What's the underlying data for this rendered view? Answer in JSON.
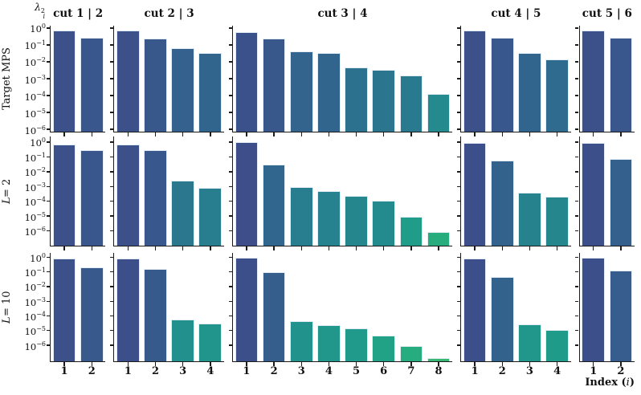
{
  "figure": {
    "background": "#ffffff",
    "spine_color": "#1b1b1b",
    "bar_edge_color": "#e2ecf5"
  },
  "y_axis_title": {
    "symbol": "λ",
    "sup": "2",
    "sub": "i"
  },
  "x_axis_label": {
    "prefix": "Index (",
    "variable": "i",
    "suffix": ")"
  },
  "y_axis": {
    "base": "10",
    "exponents": [
      "0",
      "−1",
      "−2",
      "−3",
      "−4",
      "−5",
      "−6"
    ],
    "tick_values": [
      0,
      -1,
      -2,
      -3,
      -4,
      -5,
      -6
    ]
  },
  "colormap": {
    "name": "viridis-subset",
    "log_domain": [
      0,
      -7
    ],
    "stops": [
      "#3d4e8a",
      "#355e8d",
      "#2e6d8e",
      "#287d8e",
      "#238c8d",
      "#1f9c89",
      "#25ab7f",
      "#3bb873"
    ]
  },
  "chart_data": {
    "type": "bar",
    "yscale": "log",
    "grid": false,
    "columns": [
      {
        "key": "cut-1-2",
        "title": "cut 1 | 2",
        "n_bars": 2,
        "indices": [
          "1",
          "2"
        ]
      },
      {
        "key": "cut-2-3",
        "title": "cut 2 | 3",
        "n_bars": 4,
        "indices": [
          "1",
          "2",
          "3",
          "4"
        ]
      },
      {
        "key": "cut-3-4",
        "title": "cut 3 | 4",
        "n_bars": 8,
        "indices": [
          "1",
          "2",
          "3",
          "4",
          "5",
          "6",
          "7",
          "8"
        ]
      },
      {
        "key": "cut-4-5",
        "title": "cut 4 | 5",
        "n_bars": 4,
        "indices": [
          "1",
          "2",
          "3",
          "4"
        ]
      },
      {
        "key": "cut-5-6",
        "title": "cut 5 | 6",
        "n_bars": 2,
        "indices": [
          "1",
          "2"
        ]
      }
    ],
    "rows": [
      {
        "label": "Target MPS",
        "ylim_log": [
          0.15,
          -6.15
        ],
        "panels": [
          [
            0.72,
            0.28
          ],
          [
            0.72,
            0.25,
            0.065,
            0.035
          ],
          [
            0.62,
            0.25,
            0.042,
            0.032,
            0.0048,
            0.0033,
            0.0016,
            0.00013
          ],
          [
            0.75,
            0.26,
            0.034,
            0.014
          ],
          [
            0.74,
            0.28
          ]
        ]
      },
      {
        "label_var": "L",
        "label_rest": " = 2",
        "ylim_log": [
          0.38,
          -7.0
        ],
        "panels": [
          [
            0.72,
            0.28
          ],
          [
            0.72,
            0.27,
            0.0025,
            0.0008
          ],
          [
            0.95,
            0.029,
            0.0009,
            0.0005,
            0.00023,
            0.00011,
            8.5e-06,
            8e-07
          ],
          [
            0.93,
            0.055,
            0.0004,
            0.0002
          ],
          [
            0.93,
            0.07
          ]
        ]
      },
      {
        "label_var": "L",
        "label_rest": " = 10",
        "ylim_log": [
          0.3,
          -7.1
        ],
        "panels": [
          [
            0.8,
            0.2
          ],
          [
            0.82,
            0.17,
            6e-05,
            3e-05
          ],
          [
            0.9,
            0.1,
            4.5e-05,
            2.2e-05,
            1.4e-05,
            4.5e-06,
            9e-07,
            1.3e-07
          ],
          [
            0.85,
            0.045,
            2.5e-05,
            1.1e-05
          ],
          [
            0.88,
            0.12
          ]
        ]
      }
    ]
  }
}
